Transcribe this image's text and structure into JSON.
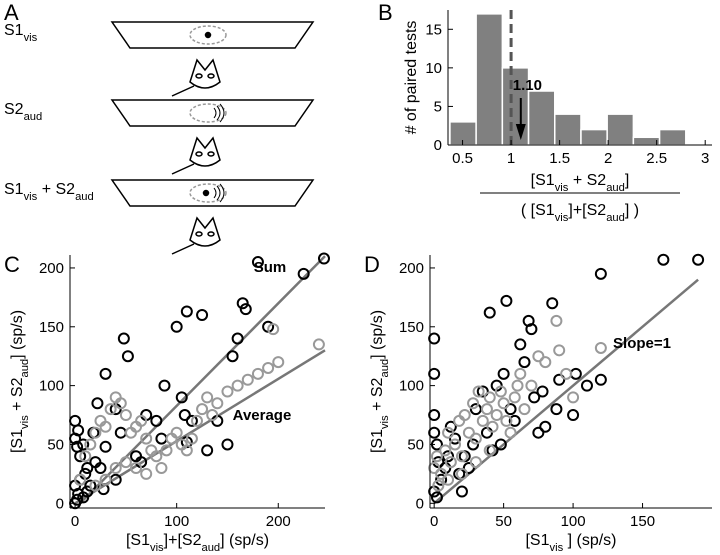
{
  "diagram": {
    "panel_label": "A",
    "conditions": [
      [
        {
          "text": "S1"
        },
        {
          "text": "vis",
          "sub": true
        }
      ],
      [
        {
          "text": "S2"
        },
        {
          "text": "aud",
          "sub": true
        }
      ],
      [
        {
          "text": "S1"
        },
        {
          "text": "vis",
          "sub": true
        },
        {
          "text": " + S2"
        },
        {
          "text": "aud",
          "sub": true
        }
      ]
    ]
  },
  "chart_data": [
    {
      "type": "histogram",
      "panel_label": "B",
      "bins": [
        0.37,
        0.64,
        0.91,
        1.18,
        1.45,
        1.72,
        1.99,
        2.26,
        2.53,
        2.8
      ],
      "counts": [
        3,
        17,
        10,
        7,
        4,
        2,
        4,
        1,
        2
      ],
      "color": "#808080",
      "xlim": [
        0.35,
        3.07
      ],
      "ylim": [
        0,
        17.5
      ],
      "xticks": [
        0.5,
        1,
        1.5,
        2,
        2.5,
        3
      ],
      "yticks": [
        0,
        5,
        10,
        15
      ],
      "ylabel": "# of paired tests",
      "xlabel": {
        "numerator": [
          {
            "text": "[S1"
          },
          {
            "text": "vis",
            "sub": true
          },
          {
            "text": " + S2"
          },
          {
            "text": "aud",
            "sub": true
          },
          {
            "text": "]"
          }
        ],
        "denominator": [
          {
            "text": "( [S1"
          },
          {
            "text": "vis",
            "sub": true
          },
          {
            "text": "]+[S2"
          },
          {
            "text": "aud",
            "sub": true
          },
          {
            "text": "] )"
          }
        ]
      },
      "reference_line": 1,
      "annotation": {
        "value": 1.1,
        "label": "1.10"
      }
    },
    {
      "type": "scatter",
      "panel_label": "C",
      "xlim": [
        -5,
        246
      ],
      "ylim": [
        -4,
        211
      ],
      "xticks": [
        0,
        100,
        200
      ],
      "yticks": [
        0,
        50,
        100,
        150,
        200
      ],
      "xlabel": [
        {
          "text": "[S1"
        },
        {
          "text": "vis",
          "sub": true
        },
        {
          "text": "]+[S2"
        },
        {
          "text": "aud",
          "sub": true
        },
        {
          "text": "] (sp/s)"
        }
      ],
      "ylabel": [
        {
          "text": "[S1"
        },
        {
          "text": "vis",
          "sub": true
        },
        {
          "text": " + S2"
        },
        {
          "text": "aud",
          "sub": true
        },
        {
          "text": "] (sp/s)"
        }
      ],
      "series": [
        {
          "color": "#000000",
          "x": [
            0,
            3,
            0,
            2,
            5,
            8,
            10,
            12,
            5,
            0,
            3,
            8,
            15,
            20,
            25,
            30,
            22,
            18,
            30,
            40,
            45,
            48,
            52,
            60,
            65,
            70,
            80,
            85,
            88,
            100,
            105,
            108,
            110,
            110,
            115,
            125,
            130,
            140,
            150,
            155,
            160,
            165,
            168,
            180,
            190,
            225,
            245,
            0,
            2,
            12,
            40,
            28
          ],
          "y": [
            70,
            62,
            55,
            48,
            40,
            50,
            25,
            30,
            20,
            15,
            8,
            5,
            15,
            35,
            30,
            48,
            85,
            60,
            110,
            80,
            60,
            140,
            125,
            40,
            35,
            75,
            70,
            55,
            100,
            150,
            90,
            75,
            163,
            52,
            70,
            160,
            45,
            70,
            50,
            125,
            140,
            170,
            165,
            205,
            150,
            195,
            208,
            0,
            3,
            10,
            20,
            12
          ]
        },
        {
          "color": "#999999",
          "x": [
            10,
            15,
            20,
            25,
            30,
            35,
            40,
            45,
            50,
            55,
            60,
            65,
            70,
            75,
            80,
            85,
            90,
            95,
            100,
            105,
            110,
            115,
            120,
            125,
            130,
            135,
            140,
            150,
            160,
            170,
            180,
            190,
            195,
            200,
            240,
            5,
            20,
            30,
            40,
            50,
            60,
            70
          ],
          "y": [
            40,
            50,
            60,
            70,
            65,
            80,
            90,
            85,
            75,
            60,
            65,
            70,
            55,
            45,
            40,
            30,
            45,
            55,
            60,
            50,
            45,
            55,
            70,
            80,
            90,
            75,
            85,
            95,
            100,
            105,
            110,
            115,
            148,
            120,
            135,
            20,
            15,
            20,
            30,
            35,
            30,
            25
          ]
        }
      ],
      "lines": [
        {
          "label": "Sum",
          "x": [
            5,
            246
          ],
          "y": [
            0,
            210
          ]
        },
        {
          "label": "Average",
          "x": [
            0,
            246
          ],
          "y": [
            0,
            130
          ]
        }
      ]
    },
    {
      "type": "scatter",
      "panel_label": "D",
      "xlim": [
        -3,
        200
      ],
      "ylim": [
        -4,
        211
      ],
      "xticks": [
        0,
        50,
        100,
        150
      ],
      "yticks": [
        0,
        50,
        100,
        150,
        200
      ],
      "xlabel": [
        {
          "text": "[S1"
        },
        {
          "text": "vis",
          "sub": true
        },
        {
          "text": " ] (sp/s)"
        }
      ],
      "ylabel": [
        {
          "text": "[S1"
        },
        {
          "text": "vis",
          "sub": true
        },
        {
          "text": " + S2"
        },
        {
          "text": "aud",
          "sub": true
        },
        {
          "text": "] (sp/s)"
        }
      ],
      "series": [
        {
          "color": "#000000",
          "x": [
            0,
            0,
            0,
            0,
            2,
            3,
            5,
            0,
            2,
            8,
            10,
            12,
            15,
            18,
            20,
            22,
            25,
            28,
            30,
            35,
            38,
            40,
            42,
            45,
            48,
            50,
            52,
            55,
            58,
            62,
            65,
            68,
            70,
            72,
            75,
            78,
            80,
            85,
            88,
            90,
            100,
            102,
            110,
            120,
            120,
            165,
            190
          ],
          "y": [
            140,
            110,
            75,
            60,
            50,
            35,
            20,
            10,
            5,
            30,
            40,
            65,
            55,
            25,
            10,
            40,
            30,
            50,
            80,
            95,
            60,
            162,
            45,
            100,
            50,
            110,
            172,
            80,
            70,
            135,
            120,
            155,
            148,
            90,
            60,
            95,
            65,
            170,
            80,
            105,
            75,
            110,
            100,
            195,
            105,
            207,
            207
          ]
        },
        {
          "color": "#999999",
          "x": [
            0,
            2,
            5,
            8,
            10,
            12,
            15,
            18,
            20,
            22,
            25,
            28,
            30,
            32,
            35,
            38,
            40,
            42,
            45,
            48,
            50,
            52,
            55,
            58,
            60,
            62,
            65,
            70,
            75,
            80,
            88,
            90,
            95,
            100,
            120,
            3,
            10,
            20,
            30,
            40
          ],
          "y": [
            30,
            40,
            25,
            45,
            60,
            35,
            50,
            70,
            40,
            75,
            60,
            85,
            55,
            95,
            70,
            80,
            90,
            65,
            75,
            95,
            85,
            70,
            60,
            90,
            100,
            110,
            80,
            100,
            125,
            120,
            155,
            130,
            110,
            90,
            132,
            15,
            20,
            25,
            35,
            45
          ]
        }
      ],
      "lines": [
        {
          "label": "Slope=1",
          "x": [
            0,
            190
          ],
          "y": [
            0,
            190
          ]
        }
      ]
    }
  ]
}
